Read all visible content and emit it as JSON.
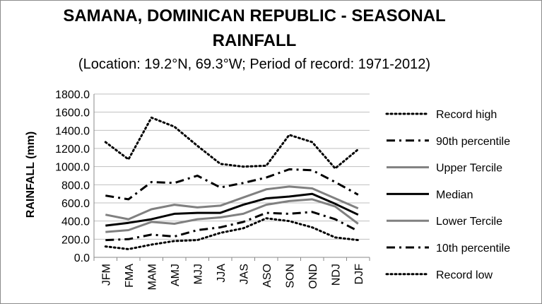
{
  "chart_data": {
    "type": "line",
    "title_line1": "SAMANA, DOMINICAN REPUBLIC - SEASONAL",
    "title_line2": "RAINFALL",
    "subtitle": "(Location: 19.2°N, 69.3°W; Period of record: 1971-2012)",
    "xlabel": "",
    "ylabel": "RAINFALL (mm)",
    "ylim": [
      0,
      1800
    ],
    "yticks": [
      "0.0",
      "200.0",
      "400.0",
      "600.0",
      "800.0",
      "1000.0",
      "1200.0",
      "1400.0",
      "1600.0",
      "1800.0"
    ],
    "grid": true,
    "legend_position": "right",
    "categories": [
      "JFM",
      "FMA",
      "MAM",
      "AMJ",
      "MJJ",
      "JJA",
      "JAS",
      "ASO",
      "SON",
      "OND",
      "NDJ",
      "DJF"
    ],
    "series": [
      {
        "name": "Record high",
        "color": "#000000",
        "style": "dotted",
        "values": [
          1270,
          1080,
          1540,
          1440,
          1230,
          1030,
          1000,
          1010,
          1350,
          1270,
          980,
          1190
        ]
      },
      {
        "name": "90th percentile",
        "color": "#000000",
        "style": "dashdot",
        "values": [
          680,
          640,
          830,
          820,
          900,
          770,
          820,
          880,
          970,
          960,
          830,
          690
        ]
      },
      {
        "name": "Upper Tercile",
        "color": "#808080",
        "style": "solid",
        "values": [
          470,
          420,
          530,
          580,
          550,
          570,
          660,
          750,
          780,
          760,
          650,
          540
        ]
      },
      {
        "name": "Median",
        "color": "#000000",
        "style": "solid",
        "values": [
          350,
          380,
          420,
          480,
          490,
          490,
          580,
          650,
          670,
          700,
          590,
          470
        ]
      },
      {
        "name": "Lower Tercile",
        "color": "#808080",
        "style": "solid",
        "values": [
          280,
          300,
          390,
          370,
          420,
          440,
          480,
          580,
          620,
          640,
          560,
          370
        ]
      },
      {
        "name": "10th percentile",
        "color": "#000000",
        "style": "dashdot",
        "values": [
          190,
          200,
          250,
          230,
          300,
          330,
          390,
          490,
          480,
          500,
          420,
          290
        ]
      },
      {
        "name": "Record low",
        "color": "#000000",
        "style": "dotted",
        "values": [
          120,
          90,
          140,
          180,
          190,
          270,
          320,
          430,
          400,
          330,
          220,
          190
        ]
      }
    ]
  }
}
